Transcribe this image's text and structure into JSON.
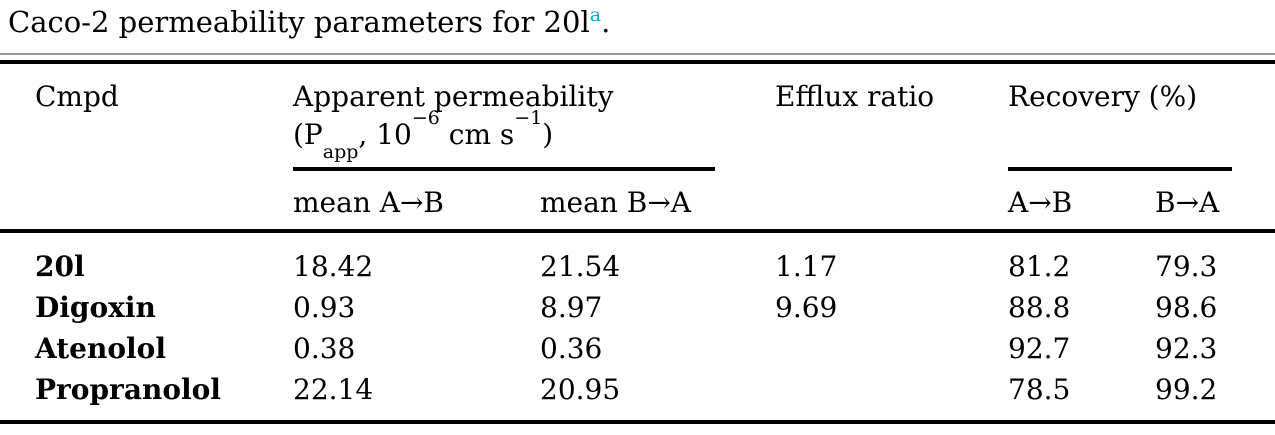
{
  "colors": {
    "text": "#000000",
    "rules": "#000000",
    "caption_hairline": "#999999",
    "footnote_link": "#1a9cd8"
  },
  "caption": {
    "text": "Caco-2 permeability parameters for 20l",
    "footnote_marker": "a",
    "period": "."
  },
  "table": {
    "headers": {
      "cmpd": "Cmpd",
      "apparent_permeability": {
        "title": "Apparent permeability",
        "unit_open": "(P",
        "unit_sub": "app",
        "unit_mid": ", 10",
        "unit_sup1": "−6",
        "unit_cms": " cm s",
        "unit_sup2": "−1",
        "unit_close": ")"
      },
      "efflux_ratio": "Efflux ratio",
      "recovery": "Recovery (%)",
      "sub": {
        "mean_a_to_b": "mean A→B",
        "mean_b_to_a": "mean B→A",
        "a_to_b": "A→B",
        "b_to_a": "B→A"
      }
    },
    "rows": [
      {
        "cmpd": "20l",
        "mean_ab": "18.42",
        "mean_ba": "21.54",
        "efflux": "1.17",
        "rec_ab": "81.2",
        "rec_ba": "79.3"
      },
      {
        "cmpd": "Digoxin",
        "mean_ab": "0.93",
        "mean_ba": "8.97",
        "efflux": "9.69",
        "rec_ab": "88.8",
        "rec_ba": "98.6"
      },
      {
        "cmpd": "Atenolol",
        "mean_ab": "0.38",
        "mean_ba": "0.36",
        "efflux": "",
        "rec_ab": "92.7",
        "rec_ba": "92.3"
      },
      {
        "cmpd": "Propranolol",
        "mean_ab": "22.14",
        "mean_ba": "20.95",
        "efflux": "",
        "rec_ab": "78.5",
        "rec_ba": "99.2"
      }
    ]
  }
}
